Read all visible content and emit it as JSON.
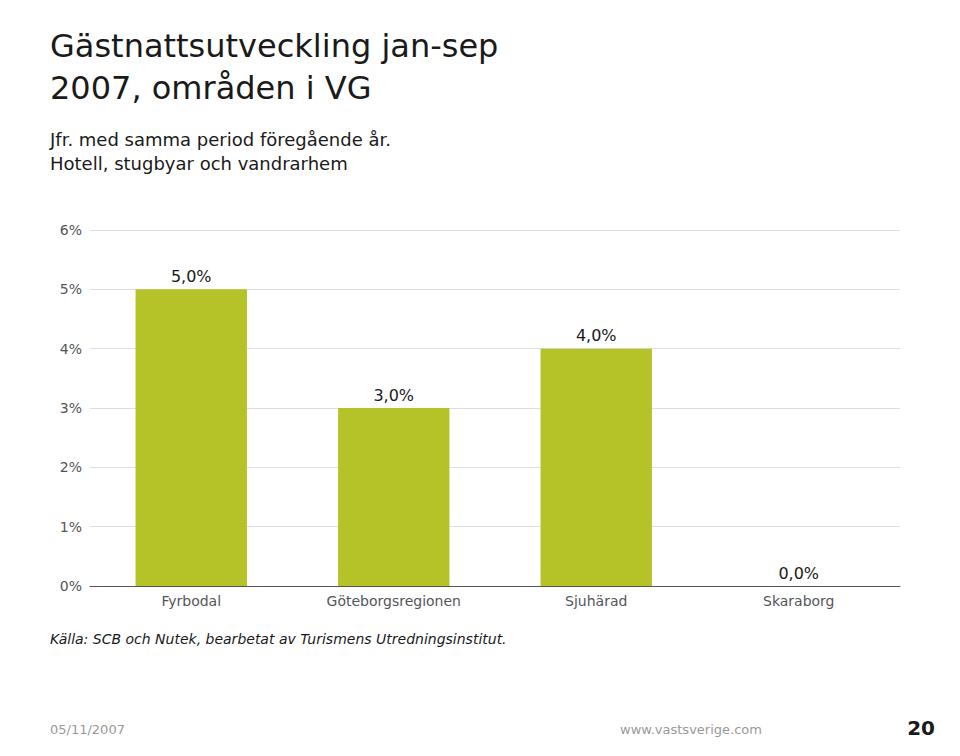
{
  "chart_data": {
    "type": "bar",
    "title": "Gästnattsutveckling jan-sep\n2007, områden i VG",
    "subtitle": "Jfr. med samma period föregående år.\nHotell, stugbyar och vandrarhem",
    "categories": [
      "Fyrbodal",
      "Göteborgsregionen",
      "Sjuhärad",
      "Skaraborg"
    ],
    "values": [
      5.0,
      3.0,
      4.0,
      0.0
    ],
    "value_labels": [
      "5,0%",
      "3,0%",
      "4,0%",
      "0,0%"
    ],
    "data_labels": true,
    "color": "#b5c228",
    "ylim": [
      0,
      6
    ],
    "yticks": [
      {
        "value": 0,
        "label": "0%"
      },
      {
        "value": 1,
        "label": "1%"
      },
      {
        "value": 2,
        "label": "2%"
      },
      {
        "value": 3,
        "label": "3%"
      },
      {
        "value": 4,
        "label": "4%"
      },
      {
        "value": 5,
        "label": "5%"
      },
      {
        "value": 6,
        "label": "6%"
      }
    ],
    "grid": true,
    "annotations": [
      "Källa: SCB och Nutek, bearbetat av Turismens Utredningsinstitut.",
      "05/11/2007",
      "www.vastsverige.com",
      "20"
    ]
  }
}
